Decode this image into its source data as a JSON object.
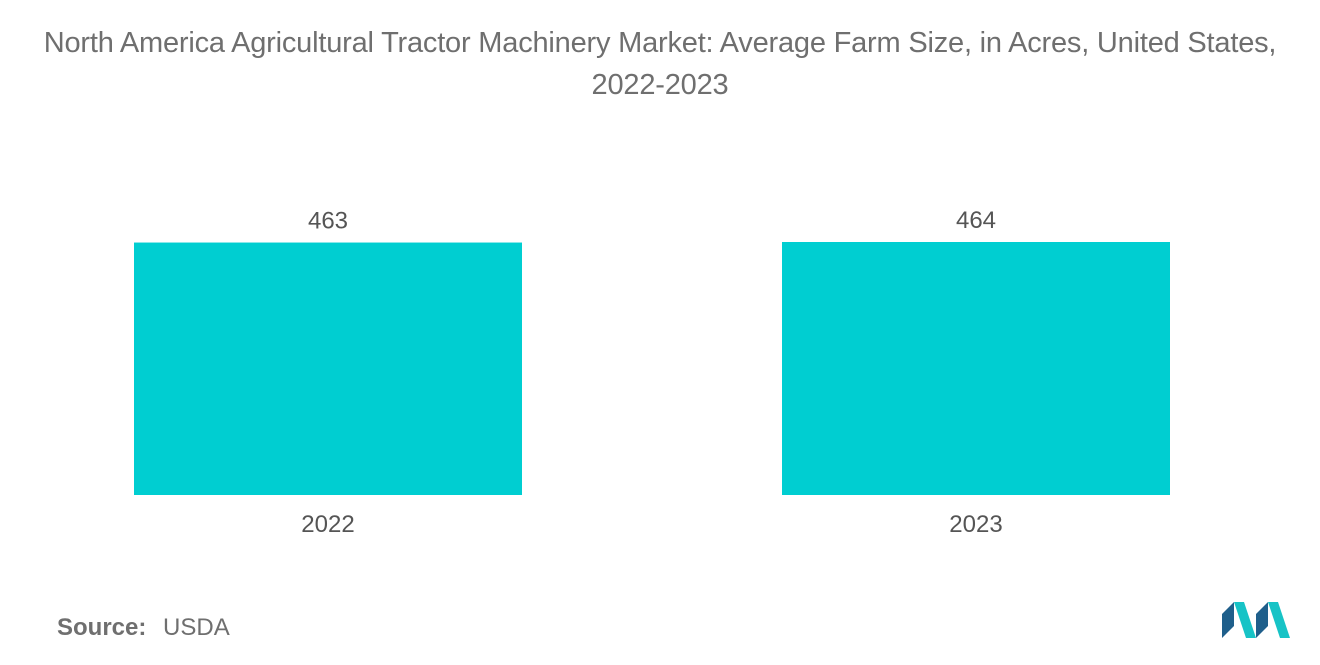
{
  "chart_data": {
    "type": "bar",
    "title": "North America Agricultural Tractor Machinery Market: Average Farm Size, in Acres, United States, 2022-2023",
    "categories": [
      "2022",
      "2023"
    ],
    "values": [
      463,
      464
    ],
    "xlabel": "",
    "ylabel": "",
    "grid": false,
    "legend": "none",
    "bar_color": "#00ced1"
  },
  "source": {
    "label": "Source:",
    "value": "USDA"
  },
  "colors": {
    "text": "#6f6f6f",
    "logo_dark": "#1f5f8b",
    "logo_light": "#17c3c6"
  }
}
